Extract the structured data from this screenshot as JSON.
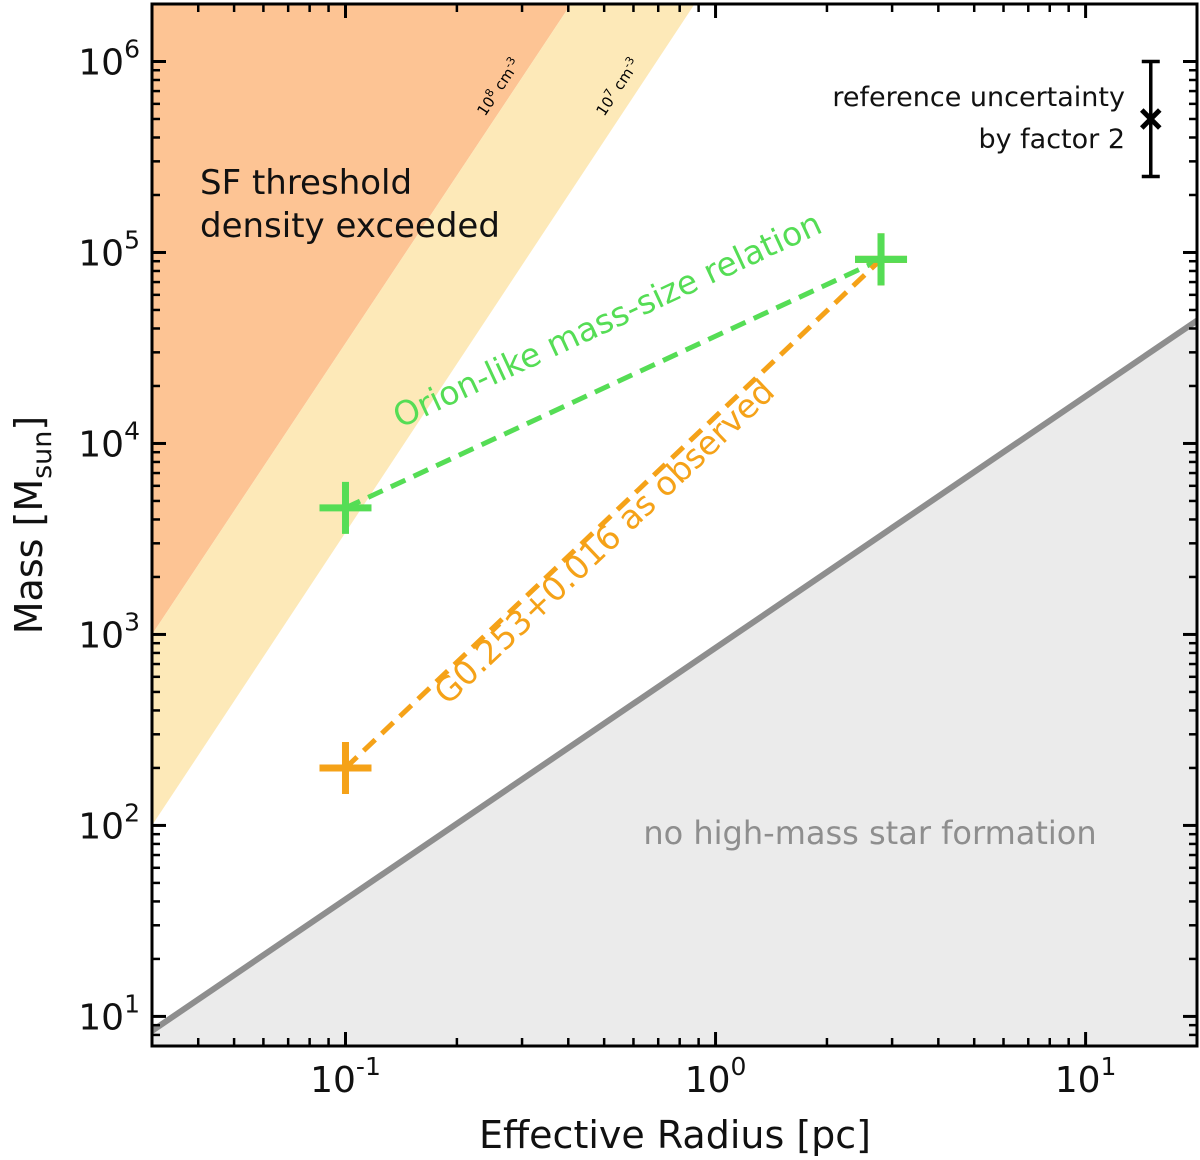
{
  "chart_data": {
    "type": "scatter",
    "xscale": "log",
    "yscale": "log",
    "xlim": [
      0.03,
      20
    ],
    "ylim": [
      7,
      2000000
    ],
    "xlabel": "Effective Radius  [pc]",
    "ylabel_main": "Mass  [M",
    "ylabel_sub": "sun",
    "ylabel_close": "]",
    "x_ticks": [
      {
        "value": 0.1,
        "base": "10",
        "exp": "-1"
      },
      {
        "value": 1,
        "base": "10",
        "exp": "0"
      },
      {
        "value": 10,
        "base": "10",
        "exp": "1"
      }
    ],
    "y_ticks": [
      {
        "value": 10,
        "base": "10",
        "exp": "1"
      },
      {
        "value": 100,
        "base": "10",
        "exp": "2"
      },
      {
        "value": 1000,
        "base": "10",
        "exp": "3"
      },
      {
        "value": 10000,
        "base": "10",
        "exp": "4"
      },
      {
        "value": 100000,
        "base": "10",
        "exp": "5"
      },
      {
        "value": 1000000,
        "base": "10",
        "exp": "6"
      }
    ],
    "regions": {
      "density_1e8": {
        "label_base": "10",
        "label_exp": "8",
        "label_unit": " cm",
        "label_unit_exp": "-3",
        "color": "#fdc494",
        "line_points": [
          [
            0.03,
            1000
          ],
          [
            0.41,
            2000000
          ]
        ]
      },
      "density_1e7": {
        "label_base": "10",
        "label_exp": "7",
        "label_unit": " cm",
        "label_unit_exp": "-3",
        "color": "#fde9b8",
        "line_points": [
          [
            0.03,
            100
          ],
          [
            0.885,
            2000000
          ]
        ]
      },
      "sf_label_line1": "SF threshold",
      "sf_label_line2": "density exceeded",
      "no_hm": {
        "label": "no high-mass star formation",
        "color": "#ebebeb",
        "line_color": "#8e8e8e",
        "line_points": [
          [
            0.03,
            8.4
          ],
          [
            20,
            44000
          ]
        ]
      }
    },
    "series": [
      {
        "name": "Orion-like mass-size relation",
        "color": "#55dd55",
        "points": [
          [
            0.1,
            4600
          ],
          [
            2.8,
            92000
          ]
        ]
      },
      {
        "name": "G0.253+0.016 as observed",
        "color": "#f5a218",
        "points": [
          [
            0.1,
            200
          ],
          [
            2.8,
            92000
          ]
        ]
      }
    ],
    "reference": {
      "line1": "reference uncertainty",
      "line2": "by factor 2",
      "x": 15,
      "y": 500000,
      "factor": 2
    }
  }
}
